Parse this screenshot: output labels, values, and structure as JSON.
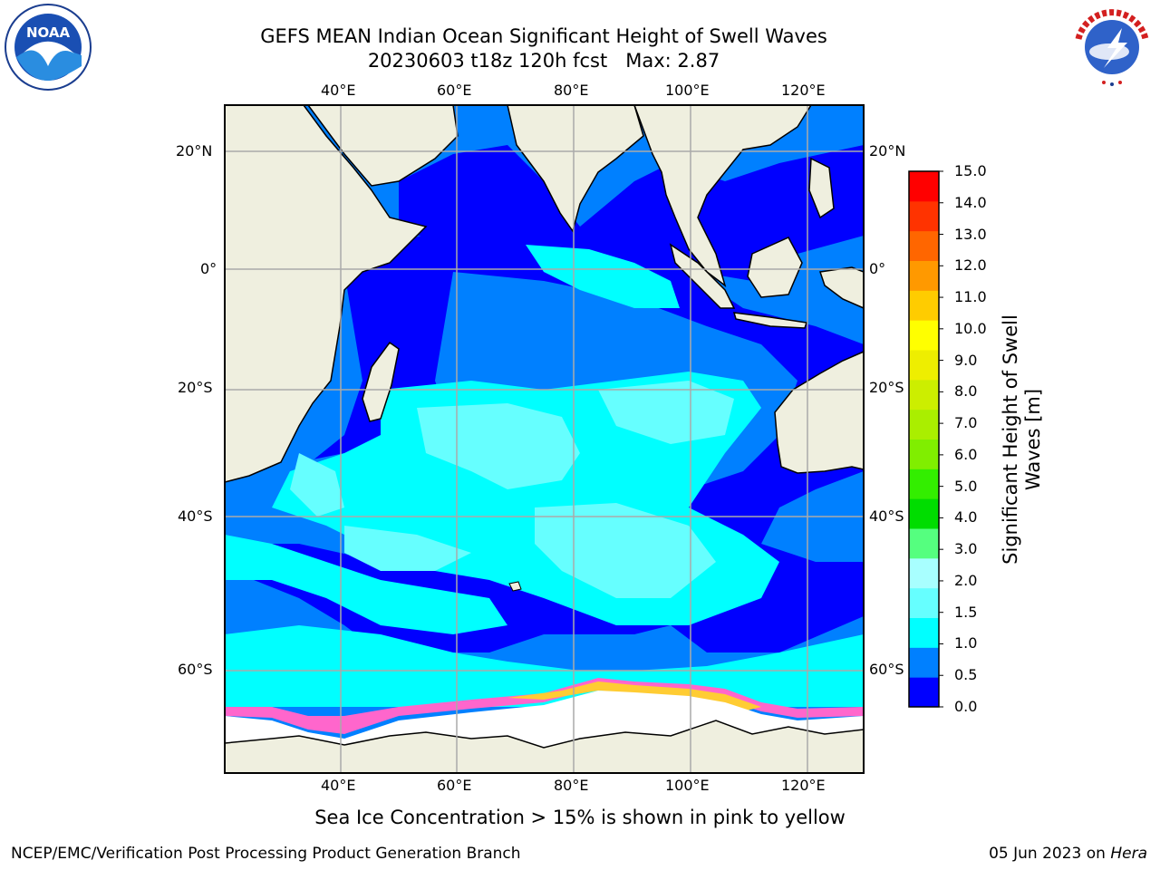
{
  "title_line1": "GEFS MEAN Indian Ocean Significant Height of Swell Waves",
  "title_line2": "20230603 t18z 120h fcst",
  "title_max": "Max: 2.87",
  "footnote": "Sea Ice Concentration > 15% is shown in pink to yellow",
  "credit": "NCEP/EMC/Verification Post Processing Product Generation Branch",
  "run_date": "05 Jun 2023 on",
  "run_host": "Hera",
  "logo_left": {
    "icon": "noaa-logo",
    "text": "NOAA"
  },
  "logo_right": {
    "icon": "national-weather-service-logo",
    "text": "NATIONAL WEATHER SERVICE"
  },
  "map": {
    "lon_ticks": [
      "40°E",
      "60°E",
      "80°E",
      "100°E",
      "120°E"
    ],
    "lat_ticks": [
      "20°N",
      "0°",
      "20°S",
      "40°S",
      "60°S"
    ],
    "land_color": "#efefdf",
    "ocean_colors": {
      "0.0-0.5": "#0000ff",
      "0.5-1.0": "#0080ff",
      "1.0-1.5": "#00ffff",
      "1.5-2.0": "#66ffff",
      "sea_ice": "#ffffff"
    }
  },
  "colorbar": {
    "title": "Significant Height of Swell Waves [m]",
    "levels": [
      "0.0",
      "0.5",
      "1.0",
      "1.5",
      "2.0",
      "3.0",
      "4.0",
      "5.0",
      "6.0",
      "7.0",
      "8.0",
      "9.0",
      "10.0",
      "11.0",
      "12.0",
      "13.0",
      "14.0",
      "15.0"
    ],
    "colors": [
      "#0000ff",
      "#0080ff",
      "#00ffff",
      "#66ffff",
      "#a8ffff",
      "#55ff7f",
      "#00dd00",
      "#33ee00",
      "#80ee00",
      "#aaee00",
      "#ccee00",
      "#eeee00",
      "#ffff00",
      "#ffcc00",
      "#ff9900",
      "#ff6600",
      "#ff3300",
      "#ff0000"
    ]
  }
}
